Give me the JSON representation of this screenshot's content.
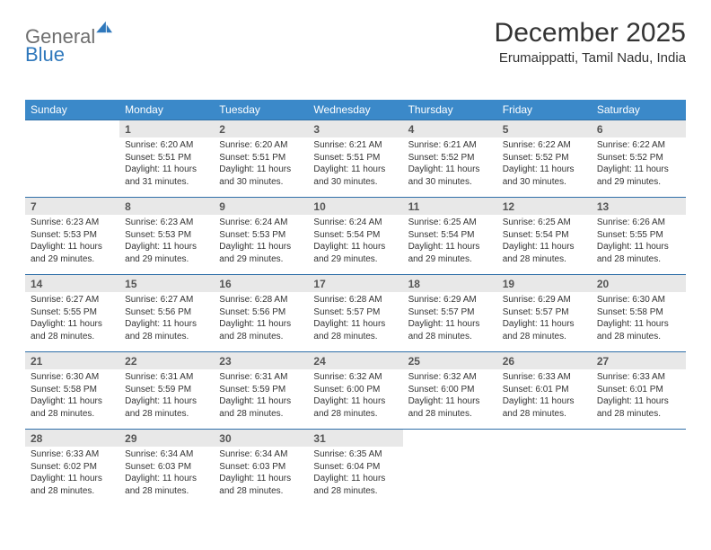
{
  "brand": {
    "word1": "General",
    "word2": "Blue"
  },
  "title": "December 2025",
  "location": "Erumaippatti, Tamil Nadu, India",
  "colors": {
    "header_bg": "#3b89c9",
    "header_text": "#ffffff",
    "daynum_bg": "#e8e8e8",
    "rule": "#2f6fa8",
    "brand_gray": "#6e6e6e",
    "brand_blue": "#2f78bc"
  },
  "typography": {
    "title_fontsize": 30,
    "location_fontsize": 15,
    "dow_fontsize": 12,
    "daynum_fontsize": 12,
    "detail_fontsize": 10
  },
  "days_of_week": [
    "Sunday",
    "Monday",
    "Tuesday",
    "Wednesday",
    "Thursday",
    "Friday",
    "Saturday"
  ],
  "weeks": [
    [
      null,
      {
        "n": "1",
        "sr": "6:20 AM",
        "ss": "5:51 PM",
        "dl": "11 hours and 31 minutes."
      },
      {
        "n": "2",
        "sr": "6:20 AM",
        "ss": "5:51 PM",
        "dl": "11 hours and 30 minutes."
      },
      {
        "n": "3",
        "sr": "6:21 AM",
        "ss": "5:51 PM",
        "dl": "11 hours and 30 minutes."
      },
      {
        "n": "4",
        "sr": "6:21 AM",
        "ss": "5:52 PM",
        "dl": "11 hours and 30 minutes."
      },
      {
        "n": "5",
        "sr": "6:22 AM",
        "ss": "5:52 PM",
        "dl": "11 hours and 30 minutes."
      },
      {
        "n": "6",
        "sr": "6:22 AM",
        "ss": "5:52 PM",
        "dl": "11 hours and 29 minutes."
      }
    ],
    [
      {
        "n": "7",
        "sr": "6:23 AM",
        "ss": "5:53 PM",
        "dl": "11 hours and 29 minutes."
      },
      {
        "n": "8",
        "sr": "6:23 AM",
        "ss": "5:53 PM",
        "dl": "11 hours and 29 minutes."
      },
      {
        "n": "9",
        "sr": "6:24 AM",
        "ss": "5:53 PM",
        "dl": "11 hours and 29 minutes."
      },
      {
        "n": "10",
        "sr": "6:24 AM",
        "ss": "5:54 PM",
        "dl": "11 hours and 29 minutes."
      },
      {
        "n": "11",
        "sr": "6:25 AM",
        "ss": "5:54 PM",
        "dl": "11 hours and 29 minutes."
      },
      {
        "n": "12",
        "sr": "6:25 AM",
        "ss": "5:54 PM",
        "dl": "11 hours and 28 minutes."
      },
      {
        "n": "13",
        "sr": "6:26 AM",
        "ss": "5:55 PM",
        "dl": "11 hours and 28 minutes."
      }
    ],
    [
      {
        "n": "14",
        "sr": "6:27 AM",
        "ss": "5:55 PM",
        "dl": "11 hours and 28 minutes."
      },
      {
        "n": "15",
        "sr": "6:27 AM",
        "ss": "5:56 PM",
        "dl": "11 hours and 28 minutes."
      },
      {
        "n": "16",
        "sr": "6:28 AM",
        "ss": "5:56 PM",
        "dl": "11 hours and 28 minutes."
      },
      {
        "n": "17",
        "sr": "6:28 AM",
        "ss": "5:57 PM",
        "dl": "11 hours and 28 minutes."
      },
      {
        "n": "18",
        "sr": "6:29 AM",
        "ss": "5:57 PM",
        "dl": "11 hours and 28 minutes."
      },
      {
        "n": "19",
        "sr": "6:29 AM",
        "ss": "5:57 PM",
        "dl": "11 hours and 28 minutes."
      },
      {
        "n": "20",
        "sr": "6:30 AM",
        "ss": "5:58 PM",
        "dl": "11 hours and 28 minutes."
      }
    ],
    [
      {
        "n": "21",
        "sr": "6:30 AM",
        "ss": "5:58 PM",
        "dl": "11 hours and 28 minutes."
      },
      {
        "n": "22",
        "sr": "6:31 AM",
        "ss": "5:59 PM",
        "dl": "11 hours and 28 minutes."
      },
      {
        "n": "23",
        "sr": "6:31 AM",
        "ss": "5:59 PM",
        "dl": "11 hours and 28 minutes."
      },
      {
        "n": "24",
        "sr": "6:32 AM",
        "ss": "6:00 PM",
        "dl": "11 hours and 28 minutes."
      },
      {
        "n": "25",
        "sr": "6:32 AM",
        "ss": "6:00 PM",
        "dl": "11 hours and 28 minutes."
      },
      {
        "n": "26",
        "sr": "6:33 AM",
        "ss": "6:01 PM",
        "dl": "11 hours and 28 minutes."
      },
      {
        "n": "27",
        "sr": "6:33 AM",
        "ss": "6:01 PM",
        "dl": "11 hours and 28 minutes."
      }
    ],
    [
      {
        "n": "28",
        "sr": "6:33 AM",
        "ss": "6:02 PM",
        "dl": "11 hours and 28 minutes."
      },
      {
        "n": "29",
        "sr": "6:34 AM",
        "ss": "6:03 PM",
        "dl": "11 hours and 28 minutes."
      },
      {
        "n": "30",
        "sr": "6:34 AM",
        "ss": "6:03 PM",
        "dl": "11 hours and 28 minutes."
      },
      {
        "n": "31",
        "sr": "6:35 AM",
        "ss": "6:04 PM",
        "dl": "11 hours and 28 minutes."
      },
      null,
      null,
      null
    ]
  ],
  "labels": {
    "sunrise": "Sunrise:",
    "sunset": "Sunset:",
    "daylight": "Daylight:"
  }
}
